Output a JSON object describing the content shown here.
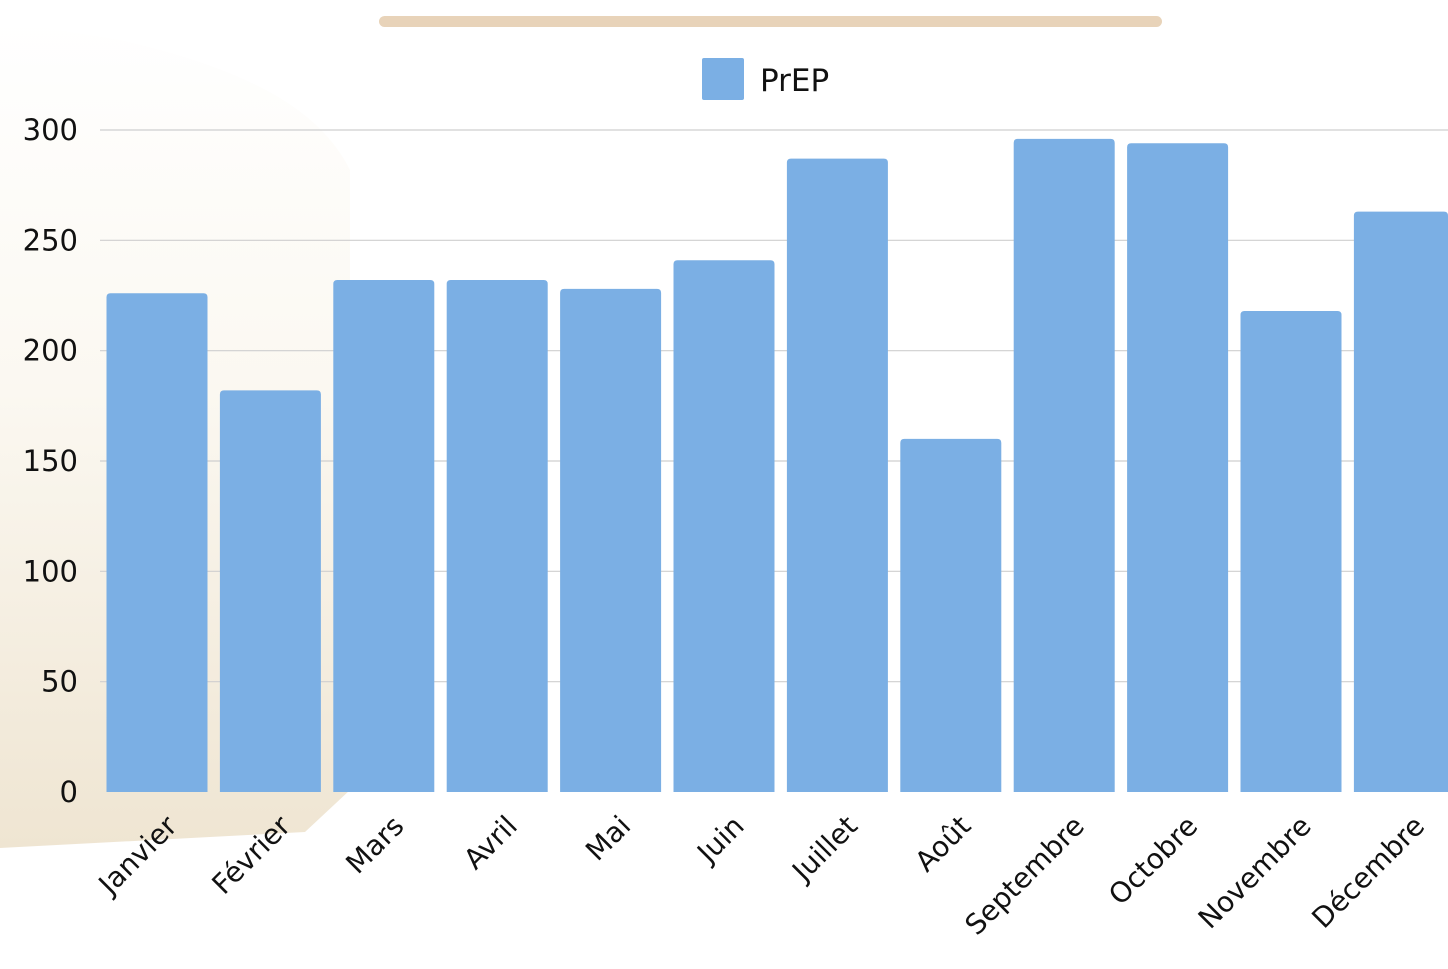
{
  "colors": {
    "bar": "#7BAFE4",
    "gridline": "#cfcfcf",
    "top_rule": "#E8D3B9",
    "bg_blob_light": "#FBF8F1",
    "bg_blob_dark": "#EFE5D2"
  },
  "chart_data": {
    "type": "bar",
    "title": "",
    "xlabel": "",
    "ylabel": "",
    "ylim": [
      0,
      300
    ],
    "yticks": [
      0,
      50,
      100,
      150,
      200,
      250,
      300
    ],
    "grid": true,
    "legend_position": "top-center",
    "categories": [
      "Janvier",
      "Février",
      "Mars",
      "Avril",
      "Mai",
      "Juin",
      "Juillet",
      "Août",
      "Septembre",
      "Octobre",
      "Novembre",
      "Décembre"
    ],
    "series": [
      {
        "name": "PrEP",
        "values": [
          226,
          182,
          232,
          232,
          228,
          241,
          287,
          160,
          296,
          294,
          218,
          263
        ]
      }
    ]
  }
}
